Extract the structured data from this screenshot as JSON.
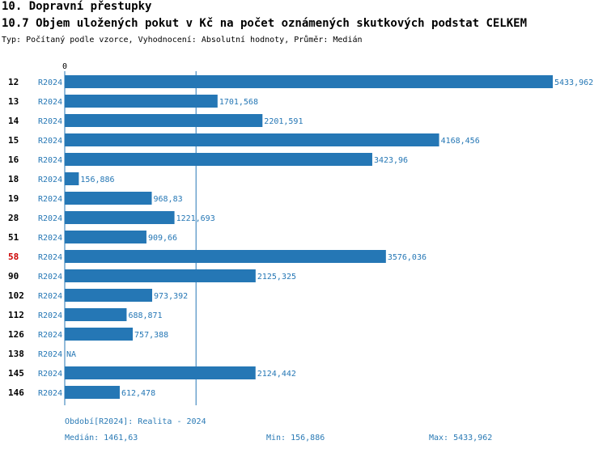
{
  "header": {
    "title": "10. Dopravní přestupky",
    "subtitle": "10.7 Objem uložených pokut v Kč na počet oznámených skutkových podstat CELKEM",
    "meta": "Typ: Počítaný podle vzorce, Vyhodnocení: Absolutní hodnoty, Průměr: Medián"
  },
  "chart_data": {
    "type": "bar",
    "orientation": "horizontal",
    "axis_zero_label": "0",
    "series_name": "R2024",
    "highlight_color": "#cc0000",
    "bar_color": "#2577b5",
    "xlim": [
      0,
      5433.962
    ],
    "median_line": 1461.63,
    "rows": [
      {
        "category": "12",
        "series": "R2024",
        "value": 5433.962,
        "label": "5433,962",
        "highlight": false
      },
      {
        "category": "13",
        "series": "R2024",
        "value": 1701.568,
        "label": "1701,568",
        "highlight": false
      },
      {
        "category": "14",
        "series": "R2024",
        "value": 2201.591,
        "label": "2201,591",
        "highlight": false
      },
      {
        "category": "15",
        "series": "R2024",
        "value": 4168.456,
        "label": "4168,456",
        "highlight": false
      },
      {
        "category": "16",
        "series": "R2024",
        "value": 3423.96,
        "label": "3423,96",
        "highlight": false
      },
      {
        "category": "18",
        "series": "R2024",
        "value": 156.886,
        "label": "156,886",
        "highlight": false
      },
      {
        "category": "19",
        "series": "R2024",
        "value": 968.83,
        "label": "968,83",
        "highlight": false
      },
      {
        "category": "28",
        "series": "R2024",
        "value": 1221.693,
        "label": "1221,693",
        "highlight": false
      },
      {
        "category": "51",
        "series": "R2024",
        "value": 909.66,
        "label": "909,66",
        "highlight": false
      },
      {
        "category": "58",
        "series": "R2024",
        "value": 3576.036,
        "label": "3576,036",
        "highlight": true
      },
      {
        "category": "90",
        "series": "R2024",
        "value": 2125.325,
        "label": "2125,325",
        "highlight": false
      },
      {
        "category": "102",
        "series": "R2024",
        "value": 973.392,
        "label": "973,392",
        "highlight": false
      },
      {
        "category": "112",
        "series": "R2024",
        "value": 688.871,
        "label": "688,871",
        "highlight": false
      },
      {
        "category": "126",
        "series": "R2024",
        "value": 757.388,
        "label": "757,388",
        "highlight": false
      },
      {
        "category": "138",
        "series": "R2024",
        "value": null,
        "label": "NA",
        "highlight": false
      },
      {
        "category": "145",
        "series": "R2024",
        "value": 2124.442,
        "label": "2124,442",
        "highlight": false
      },
      {
        "category": "146",
        "series": "R2024",
        "value": 612.478,
        "label": "612,478",
        "highlight": false
      }
    ]
  },
  "footer": {
    "period": "Období[R2024]: Realita - 2024",
    "median": "Medián: 1461,63",
    "min": "Min: 156,886",
    "max": "Max: 5433,962"
  }
}
